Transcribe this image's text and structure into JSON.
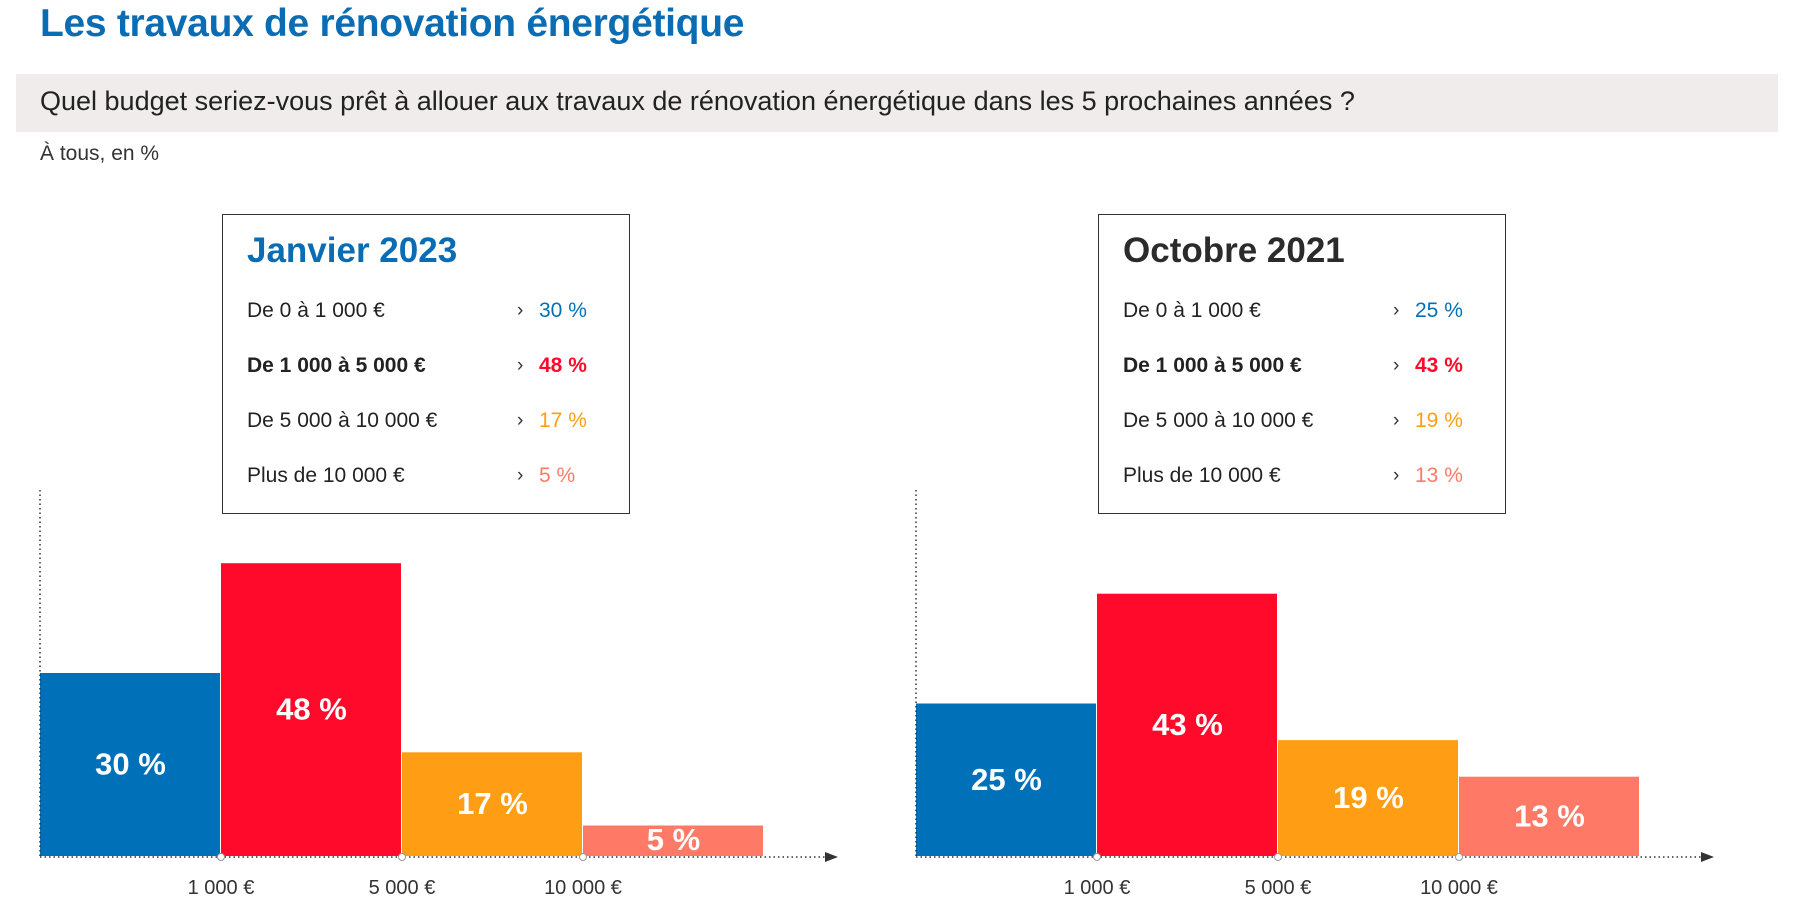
{
  "header": {
    "title": "Les travaux de rénovation énergétique",
    "question": "Quel budget seriez-vous prêt à allouer aux travaux de rénovation énergétique dans les 5 prochaines années ?",
    "subtitle": "À tous, en %"
  },
  "colors": {
    "blue": "#0070b8",
    "red": "#ff0a2a",
    "orange": "#ff9e14",
    "salmon": "#ff7a66",
    "title_blue": "#0a6db3",
    "dark": "#2b2b2b"
  },
  "legend_arrow": "›",
  "chart_data": [
    {
      "type": "bar",
      "title": "Janvier 2023",
      "categories": [
        "De 0 à 1 000 €",
        "De 1 000 à 5 000 €",
        "De 5 000 à 10 000 €",
        "Plus de 10 000 €"
      ],
      "values": [
        30,
        48,
        17,
        5
      ],
      "value_labels": [
        "30 %",
        "48 %",
        "17 %",
        "5 %"
      ],
      "x_ticks": [
        "1 000 €",
        "5 000 €",
        "10 000 €"
      ],
      "ylim": [
        0,
        60
      ],
      "unit": "%"
    },
    {
      "type": "bar",
      "title": "Octobre 2021",
      "categories": [
        "De 0 à 1 000 €",
        "De 1 000 à 5 000 €",
        "De 5 000 à 10 000 €",
        "Plus de 10 000 €"
      ],
      "values": [
        25,
        43,
        19,
        13
      ],
      "value_labels": [
        "25 %",
        "43 %",
        "19 %",
        "13 %"
      ],
      "x_ticks": [
        "1 000 €",
        "5 000 €",
        "10 000 €"
      ],
      "ylim": [
        0,
        60
      ],
      "unit": "%"
    }
  ]
}
